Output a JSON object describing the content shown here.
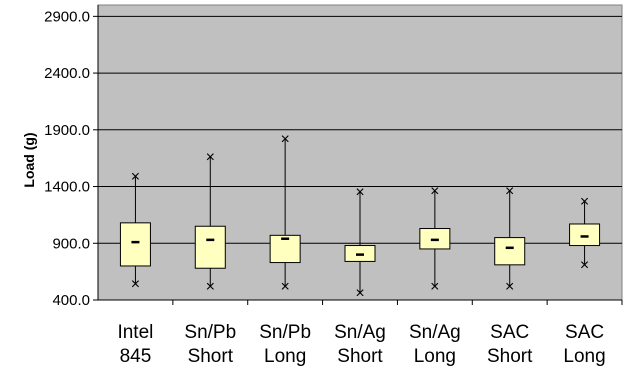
{
  "chart_data": {
    "type": "box",
    "title": "",
    "xlabel": "",
    "ylabel": "Load (g)",
    "ylim": [
      400,
      2900
    ],
    "yticks": [
      400.0,
      900.0,
      1400.0,
      1900.0,
      2400.0,
      2900.0
    ],
    "ytick_labels": [
      "400.0",
      "900.0",
      "1400.0",
      "1900.0",
      "2400.0",
      "2900.0"
    ],
    "grid": true,
    "plot_background": "#c0c0c0",
    "box_color": "#ffffc0",
    "categories": [
      [
        "Intel",
        "845"
      ],
      [
        "Sn/Pb",
        "Short"
      ],
      [
        "Sn/Pb",
        "Long"
      ],
      [
        "Sn/Ag",
        "Short"
      ],
      [
        "Sn/Ag",
        "Long"
      ],
      [
        "SAC",
        "Short"
      ],
      [
        "SAC",
        "Long"
      ]
    ],
    "boxes": [
      {
        "min": 540,
        "q1": 700,
        "median": 910,
        "q3": 1080,
        "max": 1490
      },
      {
        "min": 520,
        "q1": 680,
        "median": 930,
        "q3": 1050,
        "max": 1660
      },
      {
        "min": 520,
        "q1": 730,
        "median": 940,
        "q3": 970,
        "max": 1820
      },
      {
        "min": 460,
        "q1": 740,
        "median": 800,
        "q3": 880,
        "max": 1350
      },
      {
        "min": 520,
        "q1": 850,
        "median": 930,
        "q3": 1030,
        "max": 1360
      },
      {
        "min": 520,
        "q1": 710,
        "median": 860,
        "q3": 950,
        "max": 1360
      },
      {
        "min": 710,
        "q1": 880,
        "median": 960,
        "q3": 1070,
        "max": 1270
      }
    ]
  }
}
